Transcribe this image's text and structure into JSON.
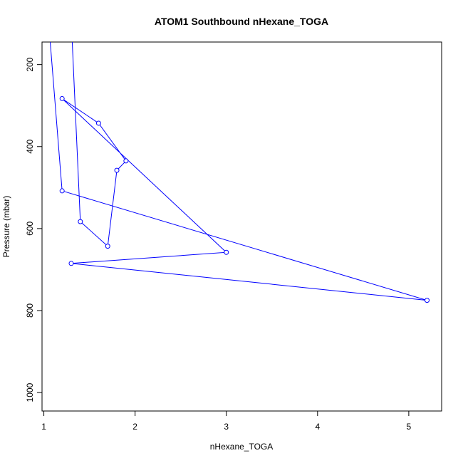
{
  "chart_data": {
    "type": "line",
    "title": "ATOM1 Southbound nHexane_TOGA",
    "xlabel": "nHexane_TOGA",
    "ylabel": "Pressure (mbar)",
    "xlim": [
      0.98,
      5.36
    ],
    "ylim": [
      1045,
      145
    ],
    "y_reversed": true,
    "x_ticks": [
      1,
      2,
      3,
      4,
      5
    ],
    "y_ticks": [
      200,
      400,
      600,
      800,
      1000
    ],
    "line_color": "#0000ff",
    "marker": "open-circle",
    "points": [
      {
        "x": 1.05,
        "y": 90
      },
      {
        "x": 1.2,
        "y": 508
      },
      {
        "x": 5.2,
        "y": 775
      },
      {
        "x": 1.3,
        "y": 685
      },
      {
        "x": 3.0,
        "y": 658
      },
      {
        "x": 1.2,
        "y": 283
      },
      {
        "x": 1.6,
        "y": 343
      },
      {
        "x": 1.9,
        "y": 435
      },
      {
        "x": 1.8,
        "y": 458
      },
      {
        "x": 1.7,
        "y": 643
      },
      {
        "x": 1.4,
        "y": 583
      },
      {
        "x": 1.3,
        "y": 90
      }
    ]
  }
}
